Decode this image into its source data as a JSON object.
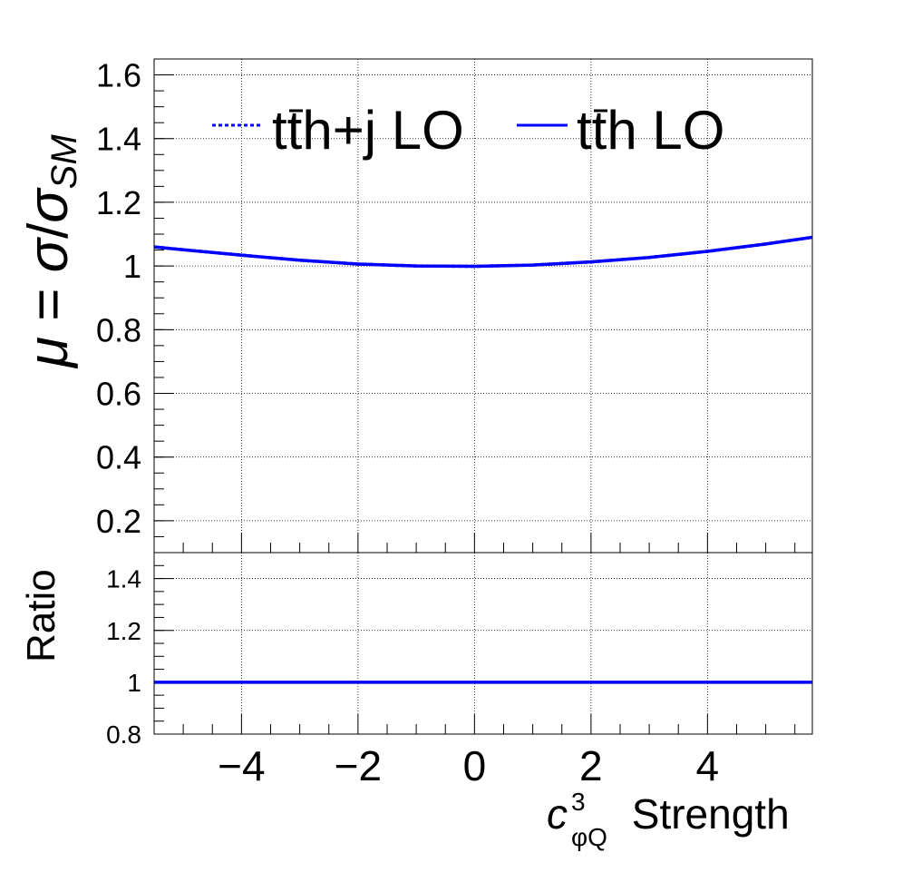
{
  "chart_data": [
    {
      "type": "line",
      "panel": "main",
      "ylabel": {
        "mu": "μ",
        "eq": " = ",
        "sigma": "σ",
        "slash": "/",
        "sigma2": "σ",
        "sub": "SM"
      },
      "xlim": [
        -5.5,
        5.8
      ],
      "ylim": [
        0.1,
        1.65
      ],
      "grid": true,
      "xticks": [
        -4,
        -2,
        0,
        2,
        4
      ],
      "yticks": [
        0.2,
        0.4,
        0.6,
        0.8,
        1.0,
        1.2,
        1.4,
        1.6
      ],
      "ytick_labels": [
        "0.2",
        "0.4",
        "0.6",
        "0.8",
        "1",
        "1.2",
        "1.4",
        "1.6"
      ],
      "legend": {
        "placement": "top",
        "entries": [
          {
            "pre": "t",
            "bar": "t",
            "post": "h+j LO",
            "series": 0
          },
          {
            "pre": "t",
            "bar": "t",
            "post": "h LO",
            "series": 1
          }
        ]
      },
      "x": [
        -5.5,
        -5,
        -4,
        -3,
        -2,
        -1,
        0,
        1,
        2,
        3,
        4,
        5,
        5.8
      ],
      "series": [
        {
          "name": "tt̄h+j LO",
          "style": "dotted",
          "color": "#0000ff",
          "values": [
            1.06,
            1.051,
            1.034,
            1.018,
            1.006,
            1.0,
            0.999,
            1.003,
            1.013,
            1.027,
            1.046,
            1.069,
            1.09
          ]
        },
        {
          "name": "tt̄h LO",
          "style": "solid",
          "color": "#0000ff",
          "values": [
            1.06,
            1.051,
            1.034,
            1.018,
            1.006,
            1.0,
            0.999,
            1.003,
            1.013,
            1.027,
            1.046,
            1.069,
            1.09
          ]
        }
      ]
    },
    {
      "type": "line",
      "panel": "ratio",
      "ylabel": "Ratio",
      "xlabel": {
        "c": "c",
        "sup": "3",
        "sub": "φQ",
        "rest": " Strength"
      },
      "xlim": [
        -5.5,
        5.8
      ],
      "ylim": [
        0.8,
        1.5
      ],
      "grid": true,
      "xticks": [
        -4,
        -2,
        0,
        2,
        4
      ],
      "xtick_labels": [
        "−4",
        "−2",
        "0",
        "2",
        "4"
      ],
      "yticks": [
        0.8,
        1.0,
        1.2,
        1.4
      ],
      "ytick_labels": [
        "0.8",
        "1",
        "1.2",
        "1.4"
      ],
      "x": [
        -5.5,
        5.8
      ],
      "series": [
        {
          "name": "ratio",
          "style": "solid",
          "color": "#0000ff",
          "values": [
            1.0,
            1.0
          ]
        }
      ]
    }
  ]
}
